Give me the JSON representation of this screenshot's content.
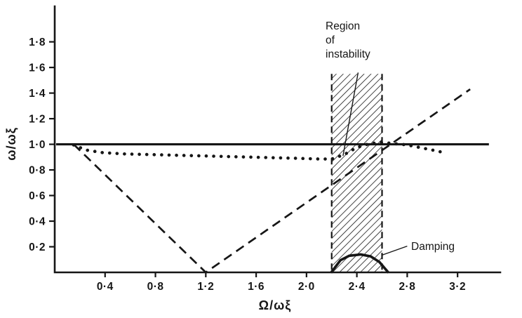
{
  "figure": {
    "background": "#ffffff",
    "ink": "#161616"
  },
  "chart_data": {
    "type": "line",
    "title": "",
    "xlabel": "Ω/ωξ",
    "ylabel": "ω/ωξ",
    "xlim": [
      0,
      3.5
    ],
    "ylim": [
      0,
      2.05
    ],
    "grid": false,
    "legend": "none",
    "x_ticks": [
      0.4,
      0.8,
      1.2,
      1.6,
      2.0,
      2.4,
      2.8,
      3.2
    ],
    "x_tick_labels": [
      "0·4",
      "0·8",
      "1·2",
      "1·6",
      "2·0",
      "2·4",
      "2·8",
      "3·2"
    ],
    "y_ticks": [
      0.2,
      0.4,
      0.6,
      0.8,
      1.0,
      1.2,
      1.4,
      1.6,
      1.8
    ],
    "y_tick_labels": [
      "0·2",
      "0·4",
      "0·6",
      "0·8",
      "1·0",
      "1·2",
      "1·4",
      "1·6",
      "1·8"
    ],
    "series": [
      {
        "name": "unity-frequency-line",
        "style": "solid",
        "width": 3.2,
        "points": [
          [
            0.02,
            1.0
          ],
          [
            3.44,
            1.0
          ]
        ]
      },
      {
        "name": "dotted-frequency-curve",
        "style": "dotted",
        "width": 4.6,
        "points": [
          [
            0.15,
            0.995
          ],
          [
            0.25,
            0.955
          ],
          [
            0.38,
            0.935
          ],
          [
            0.55,
            0.925
          ],
          [
            0.75,
            0.92
          ],
          [
            0.95,
            0.915
          ],
          [
            1.15,
            0.91
          ],
          [
            1.35,
            0.905
          ],
          [
            1.55,
            0.9
          ],
          [
            1.75,
            0.895
          ],
          [
            1.95,
            0.89
          ],
          [
            2.1,
            0.885
          ],
          [
            2.2,
            0.885
          ],
          [
            2.3,
            0.92
          ],
          [
            2.4,
            0.975
          ],
          [
            2.5,
            1.005
          ],
          [
            2.6,
            1.015
          ],
          [
            2.7,
            1.005
          ],
          [
            2.8,
            0.995
          ],
          [
            2.9,
            0.975
          ],
          [
            3.0,
            0.955
          ],
          [
            3.07,
            0.94
          ]
        ]
      },
      {
        "name": "dashed-v-line",
        "style": "dashed",
        "width": 2.7,
        "points": [
          [
            0.15,
            1.0
          ],
          [
            1.2,
            0.0
          ],
          [
            3.3,
            1.43
          ]
        ]
      },
      {
        "name": "damping-curve",
        "style": "solid",
        "width": 3.6,
        "points": [
          [
            2.2,
            0.005
          ],
          [
            2.27,
            0.095
          ],
          [
            2.34,
            0.13
          ],
          [
            2.43,
            0.14
          ],
          [
            2.51,
            0.125
          ],
          [
            2.58,
            0.08
          ],
          [
            2.645,
            0.005
          ]
        ]
      }
    ],
    "instability_region": {
      "x_start": 2.2,
      "x_end": 2.6,
      "y_top": 1.55
    },
    "annotations": {
      "region": {
        "lines": [
          "Region",
          "of",
          "instability"
        ],
        "leader": [
          [
            2.41,
            1.56
          ],
          [
            2.29,
            0.91
          ]
        ]
      },
      "damping": {
        "text": "Damping",
        "leader": [
          [
            2.8,
            0.205
          ],
          [
            2.6,
            0.135
          ]
        ]
      }
    }
  }
}
